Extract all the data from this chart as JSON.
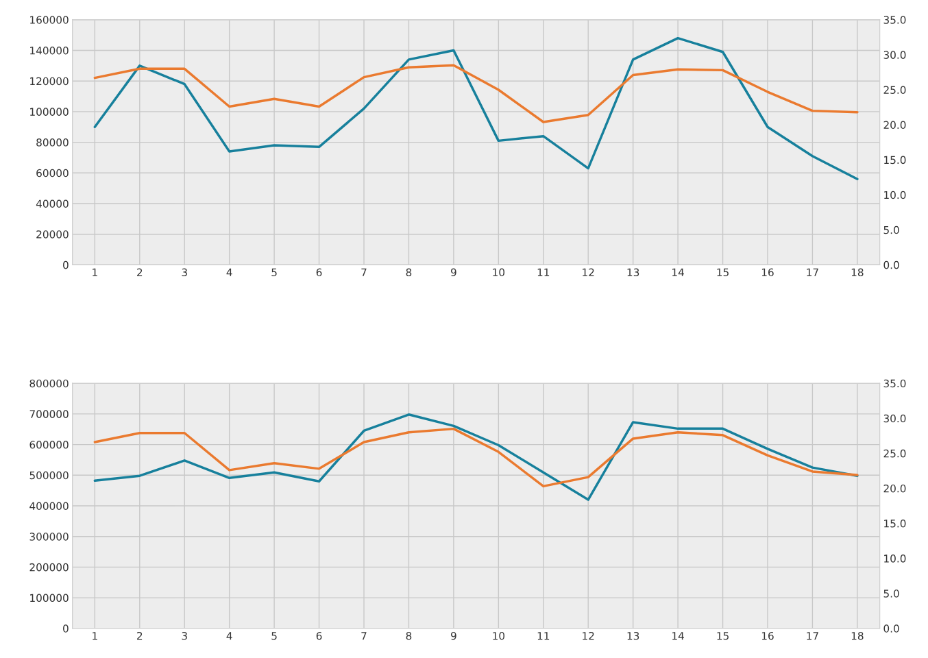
{
  "chart_data": [
    {
      "type": "line",
      "categories": [
        "1",
        "2",
        "3",
        "4",
        "5",
        "6",
        "7",
        "8",
        "9",
        "10",
        "11",
        "12",
        "13",
        "14",
        "15",
        "16",
        "17",
        "18"
      ],
      "series": [
        {
          "color": "#17809c",
          "values": [
            90000,
            130000,
            118000,
            74000,
            78000,
            77000,
            102000,
            134000,
            140000,
            81000,
            84000,
            63000,
            134000,
            148000,
            139000,
            90000,
            71000,
            56000
          ]
        },
        {
          "color": "#ea7a2f",
          "axis": "y2",
          "values": [
            26.7,
            28.0,
            28.0,
            22.6,
            23.7,
            22.6,
            26.8,
            28.2,
            28.5,
            25.0,
            20.4,
            21.4,
            27.1,
            27.9,
            27.8,
            24.7,
            22.0,
            21.8
          ]
        }
      ],
      "ylim": [
        0,
        160000
      ],
      "yticks": [
        0,
        20000,
        40000,
        60000,
        80000,
        100000,
        120000,
        140000,
        160000
      ],
      "y2lim": [
        0,
        35
      ],
      "y2ticks": [
        {
          "value": 0,
          "label": "0.0"
        },
        {
          "value": 5,
          "label": "5.0"
        },
        {
          "value": 10,
          "label": "10.0"
        },
        {
          "value": 15,
          "label": "15.0"
        },
        {
          "value": 20,
          "label": "20.0"
        },
        {
          "value": 25,
          "label": "25.0"
        },
        {
          "value": 30,
          "label": "30.0"
        },
        {
          "value": 35,
          "label": "35.0"
        }
      ],
      "grid": true
    },
    {
      "type": "line",
      "categories": [
        "1",
        "2",
        "3",
        "4",
        "5",
        "6",
        "7",
        "8",
        "9",
        "10",
        "11",
        "12",
        "13",
        "14",
        "15",
        "16",
        "17",
        "18"
      ],
      "series": [
        {
          "color": "#17809c",
          "values": [
            482000,
            498000,
            548000,
            491000,
            509000,
            480000,
            645000,
            698000,
            661000,
            598000,
            509000,
            420000,
            673000,
            652000,
            652000,
            586000,
            525000,
            498000
          ]
        },
        {
          "color": "#ea7a2f",
          "axis": "y2",
          "values": [
            26.6,
            27.9,
            27.9,
            22.6,
            23.6,
            22.8,
            26.6,
            28.0,
            28.5,
            25.2,
            20.3,
            21.6,
            27.1,
            28.0,
            27.6,
            24.7,
            22.4,
            21.9
          ]
        }
      ],
      "ylim": [
        0,
        800000
      ],
      "yticks": [
        0,
        100000,
        200000,
        300000,
        400000,
        500000,
        600000,
        700000,
        800000
      ],
      "y2lim": [
        0,
        35
      ],
      "y2ticks": [
        {
          "value": 0,
          "label": "0.0"
        },
        {
          "value": 5,
          "label": "5.0"
        },
        {
          "value": 10,
          "label": "10.0"
        },
        {
          "value": 15,
          "label": "15.0"
        },
        {
          "value": 20,
          "label": "20.0"
        },
        {
          "value": 25,
          "label": "25.0"
        },
        {
          "value": 30,
          "label": "30.0"
        },
        {
          "value": 35,
          "label": "35.0"
        }
      ],
      "grid": true
    }
  ]
}
